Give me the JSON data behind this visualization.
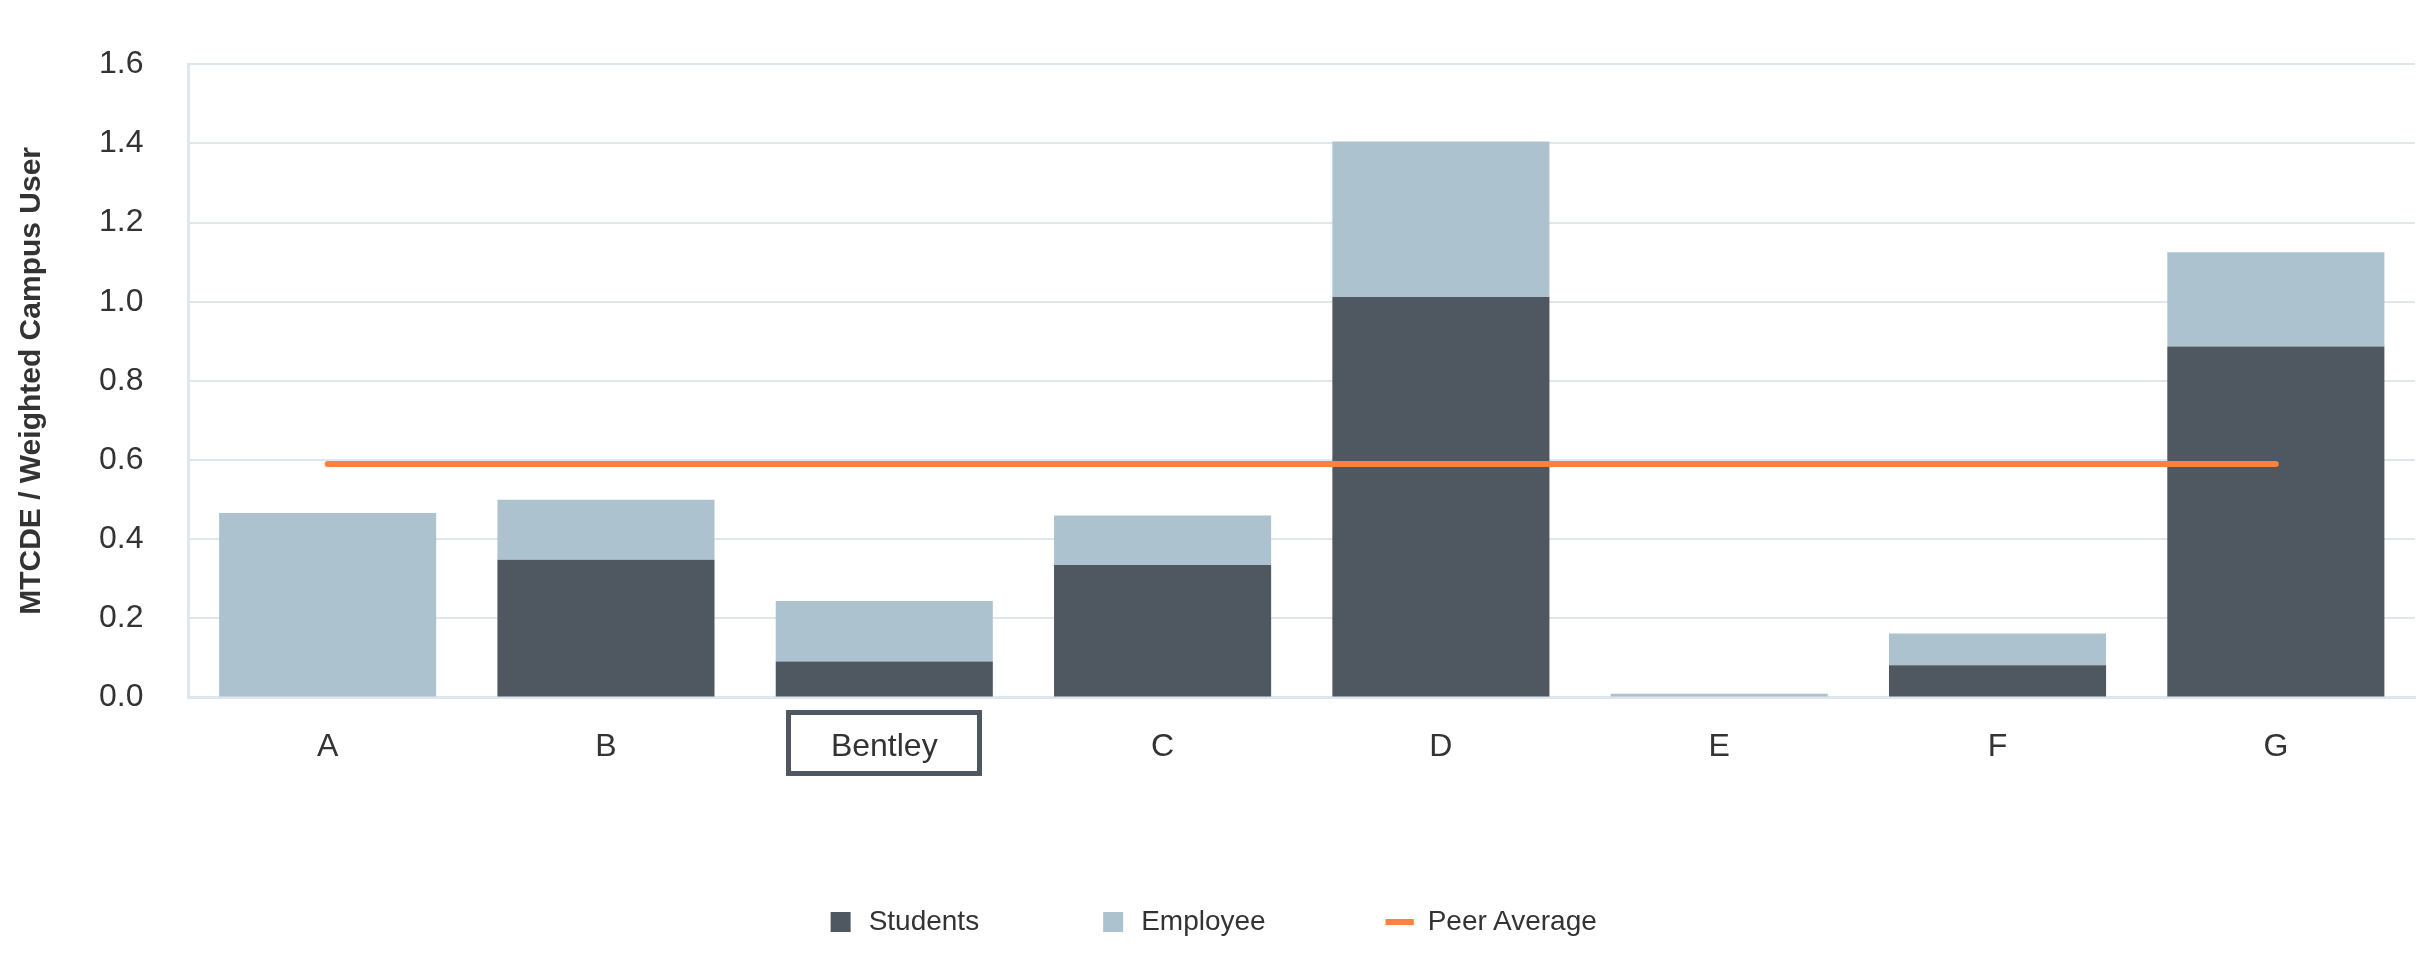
{
  "chart_data": {
    "type": "bar",
    "ylabel": "MTCDE / Weighted Campus User",
    "categories": [
      "A",
      "B",
      "Bentley",
      "C",
      "D",
      "E",
      "F",
      "G"
    ],
    "series": [
      {
        "name": "Students",
        "color": "#4f5761",
        "values": [
          0,
          0.348,
          0.091,
          0.335,
          1.012,
          null,
          0.082,
          0.887
        ]
      },
      {
        "name": "Employee",
        "color": "#acc3cf",
        "values": [
          0.466,
          0.152,
          0.153,
          0.125,
          0.393,
          0.01,
          0.08,
          0.238
        ]
      },
      {
        "name": "Peer Average",
        "type": "line",
        "color": "#fc8040",
        "values": [
          0.59,
          0.59,
          0.59,
          0.59,
          0.59,
          0.59,
          0.59,
          0.59
        ]
      }
    ],
    "stacked": true,
    "ylim": [
      0,
      1.6
    ],
    "yticks": [
      {
        "value": 0,
        "label": "0.0"
      },
      0.2,
      0.4,
      0.6,
      0.8,
      {
        "value": 1,
        "label": "1.0"
      },
      1.2,
      1.4,
      1.6
    ],
    "grid": "y",
    "legend": "bottom",
    "marker": "none"
  }
}
